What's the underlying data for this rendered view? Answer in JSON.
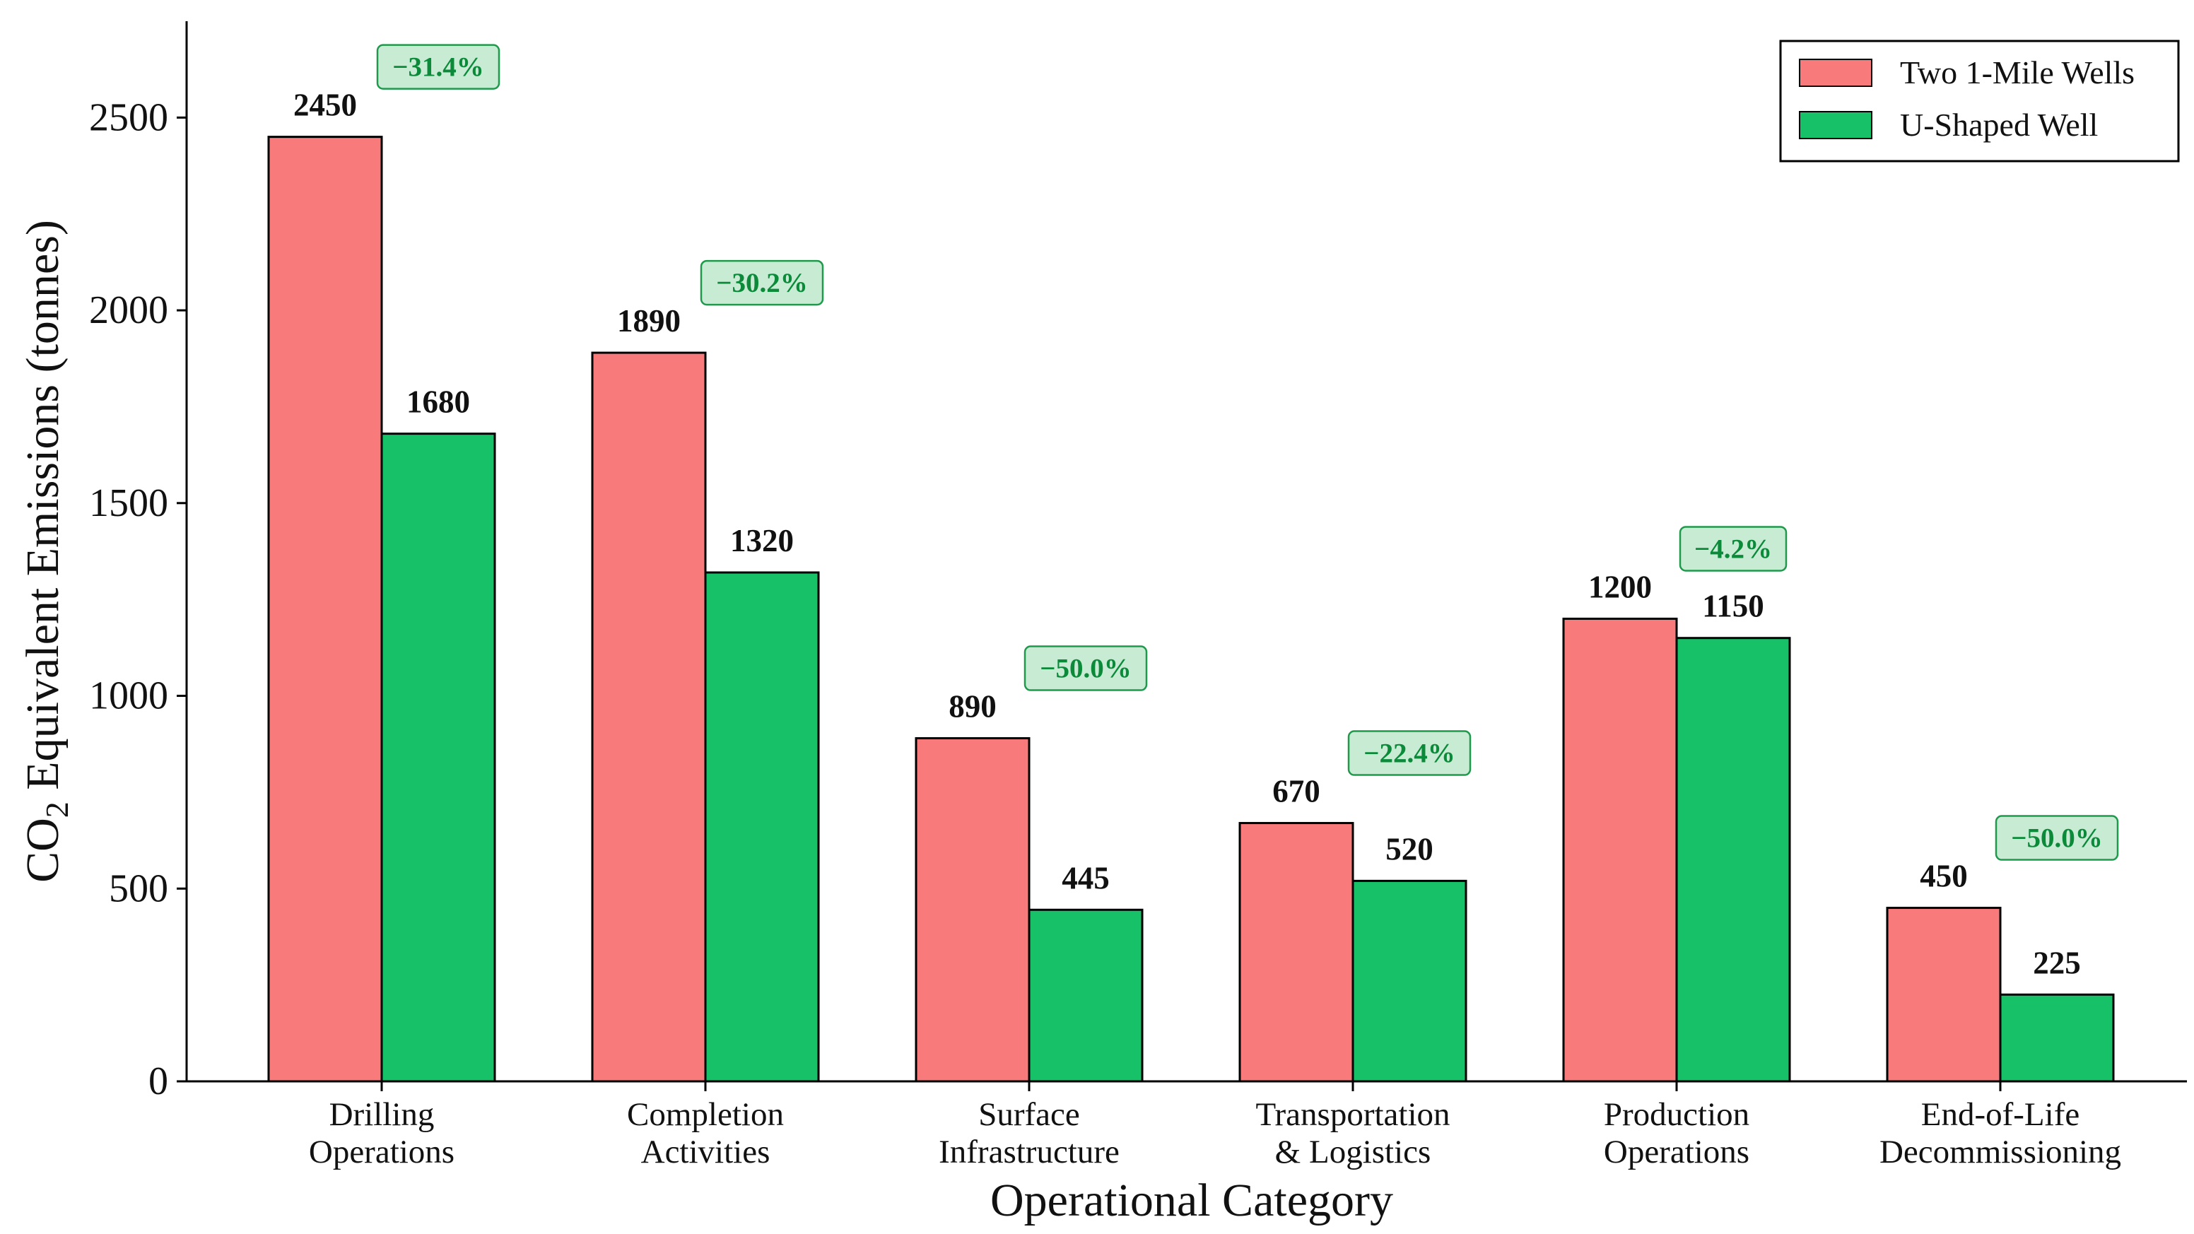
{
  "chart_data": {
    "type": "bar",
    "title": "",
    "xlabel": "Operational Category",
    "ylabel_main": "CO",
    "ylabel_sub": "2",
    "ylabel_rest": " Equivalent Emissions (tonnes)",
    "ylim": [
      0,
      2750
    ],
    "yticks": [
      0,
      500,
      1000,
      1500,
      2000,
      2500
    ],
    "categories": [
      [
        "Drilling",
        "Operations"
      ],
      [
        "Completion",
        "Activities"
      ],
      [
        "Surface",
        "Infrastructure"
      ],
      [
        "Transportation",
        "& Logistics"
      ],
      [
        "Production",
        "Operations"
      ],
      [
        "End-of-Life",
        "Decommissioning"
      ]
    ],
    "series": [
      {
        "name": "Two 1-Mile Wells",
        "color": "#f87a7a",
        "values": [
          2450,
          1890,
          890,
          670,
          1200,
          450
        ]
      },
      {
        "name": "U-Shaped Well",
        "color": "#16c168",
        "values": [
          1680,
          1320,
          445,
          520,
          1150,
          225
        ]
      }
    ],
    "value_labels": [
      [
        "2450",
        "1680"
      ],
      [
        "1890",
        "1320"
      ],
      [
        "890",
        "445"
      ],
      [
        "670",
        "520"
      ],
      [
        "1200",
        "1150"
      ],
      [
        "450",
        "225"
      ]
    ],
    "reduction_labels": [
      "−31.4%",
      "−30.2%",
      "−50.0%",
      "−22.4%",
      "−4.2%",
      "−50.0%"
    ],
    "reduction_box_fill": "#c8ebd4",
    "reduction_box_stroke": "#1f9a4c",
    "reduction_text_color": "#0b8a3a",
    "legend_position": "top-right",
    "grid": false
  }
}
